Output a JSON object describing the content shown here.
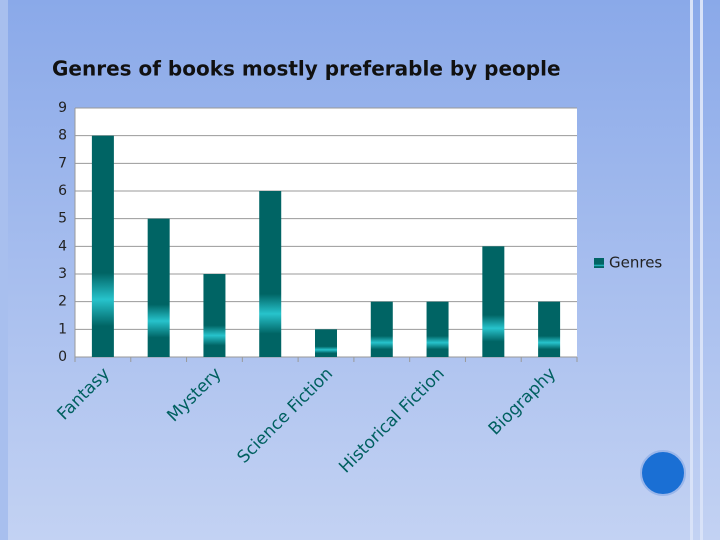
{
  "chart_data": {
    "type": "bar",
    "title": "Genres of books mostly preferable by people",
    "categories": [
      "Fantasy",
      null,
      "Mystery",
      null,
      "Science Fiction",
      null,
      "Historical Fiction",
      null,
      "Biography"
    ],
    "series": [
      {
        "name": "Genres",
        "color": "#006464",
        "values": [
          8,
          5,
          3,
          6,
          1,
          2,
          2,
          4,
          2
        ]
      }
    ],
    "ylim": [
      0,
      9
    ],
    "yticks": [
      0,
      1,
      2,
      3,
      4,
      5,
      6,
      7,
      8,
      9
    ],
    "grid": true,
    "legend": "right"
  }
}
